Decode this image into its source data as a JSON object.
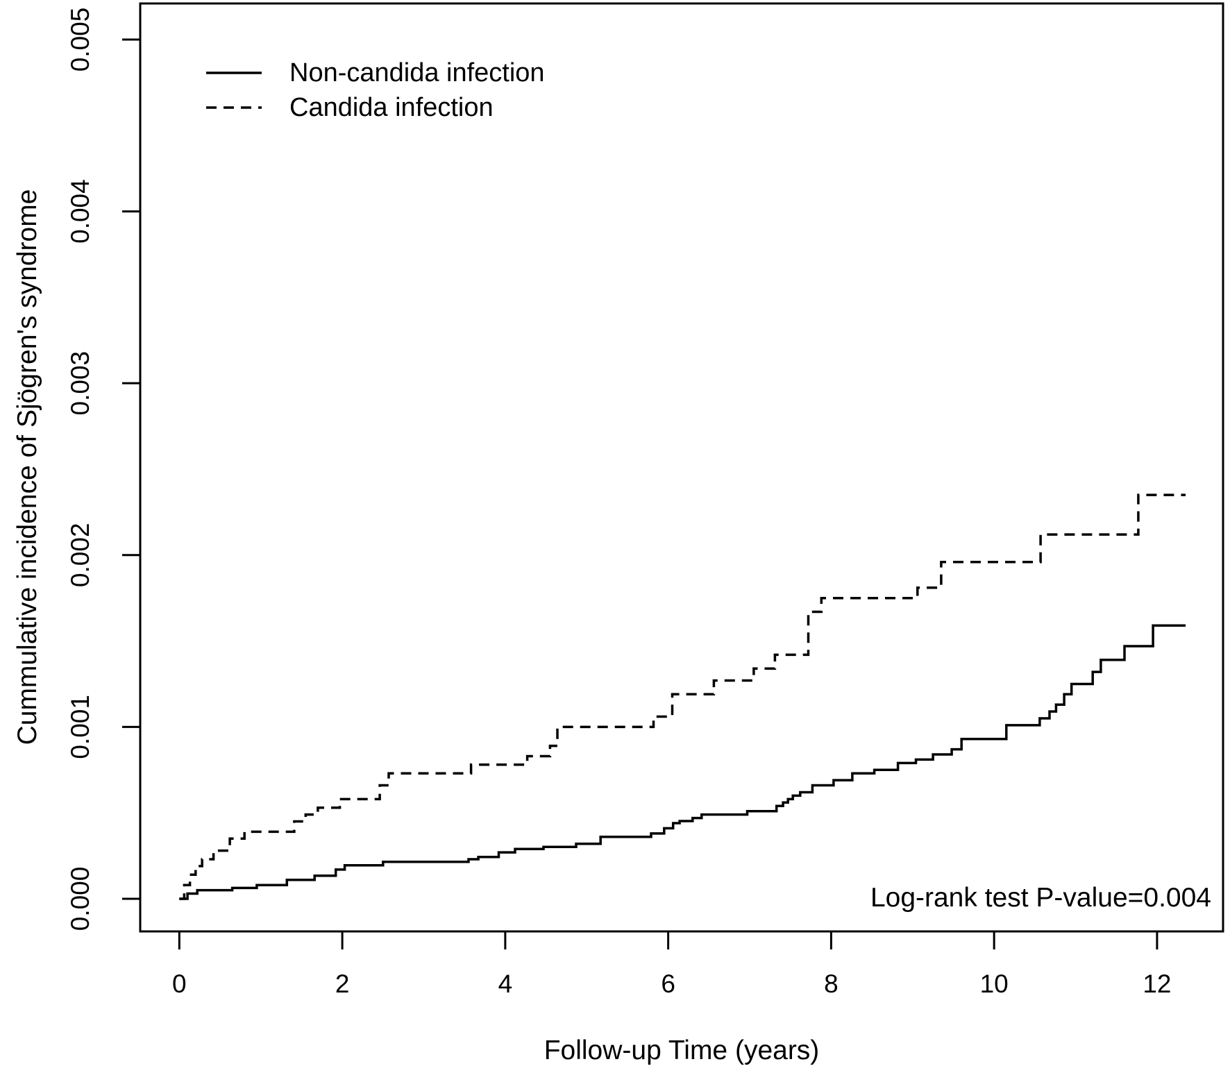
{
  "chart_data": {
    "type": "line",
    "subtype": "kaplan-meier-step",
    "title": "",
    "xlabel": "Follow-up Time (years)",
    "ylabel": "Cummulative incidence of Sjögren's syndrome",
    "annotation": "Log-rank test P-value=0.004",
    "xlim": [
      -0.48,
      12.81
    ],
    "ylim": [
      -0.00019,
      0.00521
    ],
    "grid": false,
    "legend_position": "top-left-inside",
    "x_ticks": [
      {
        "value": 0,
        "label": "0"
      },
      {
        "value": 2,
        "label": "2"
      },
      {
        "value": 4,
        "label": "4"
      },
      {
        "value": 6,
        "label": "6"
      },
      {
        "value": 8,
        "label": "8"
      },
      {
        "value": 10,
        "label": "10"
      },
      {
        "value": 12,
        "label": "12"
      }
    ],
    "y_ticks": [
      {
        "value": 0.0,
        "label": "0.000"
      },
      {
        "value": 0.001,
        "label": "0.001"
      },
      {
        "value": 0.002,
        "label": "0.002"
      },
      {
        "value": 0.003,
        "label": "0.003"
      },
      {
        "value": 0.004,
        "label": "0.004"
      },
      {
        "value": 0.005,
        "label": "0.005"
      }
    ],
    "legend": [
      {
        "label": "Non-candida infection",
        "style": "solid"
      },
      {
        "label": "Candida infection",
        "style": "dashed"
      }
    ],
    "line_color": "#000000",
    "series": [
      {
        "name": "Non-candida infection",
        "style": "solid",
        "end_t": 12.35,
        "points": [
          [
            0,
            0
          ],
          [
            0.1,
            3e-05
          ],
          [
            0.22,
            5e-05
          ],
          [
            0.65,
            6.3e-05
          ],
          [
            0.95,
            8e-05
          ],
          [
            1.32,
            0.00011
          ],
          [
            1.66,
            0.000134
          ],
          [
            1.92,
            0.00017
          ],
          [
            2.03,
            0.000195
          ],
          [
            2.5,
            0.000215
          ],
          [
            3.55,
            0.00023
          ],
          [
            3.67,
            0.000243
          ],
          [
            3.92,
            0.00027
          ],
          [
            4.12,
            0.00029
          ],
          [
            4.47,
            0.000302
          ],
          [
            4.87,
            0.00032
          ],
          [
            5.17,
            0.00036
          ],
          [
            5.79,
            0.00038
          ],
          [
            5.95,
            0.00041
          ],
          [
            6.06,
            0.00044
          ],
          [
            6.14,
            0.000452
          ],
          [
            6.3,
            0.00047
          ],
          [
            6.41,
            0.00049
          ],
          [
            6.97,
            0.00051
          ],
          [
            7.33,
            0.00054
          ],
          [
            7.41,
            0.00056
          ],
          [
            7.47,
            0.00058
          ],
          [
            7.53,
            0.0006
          ],
          [
            7.62,
            0.00062
          ],
          [
            7.77,
            0.00066
          ],
          [
            8.03,
            0.00069
          ],
          [
            8.26,
            0.00073
          ],
          [
            8.53,
            0.00075
          ],
          [
            8.82,
            0.00079
          ],
          [
            9.04,
            0.00081
          ],
          [
            9.25,
            0.00084
          ],
          [
            9.48,
            0.00087
          ],
          [
            9.6,
            0.00093
          ],
          [
            10.15,
            0.00101
          ],
          [
            10.56,
            0.00105
          ],
          [
            10.68,
            0.00109
          ],
          [
            10.76,
            0.00113
          ],
          [
            10.86,
            0.00119
          ],
          [
            10.95,
            0.00125
          ],
          [
            11.21,
            0.00132
          ],
          [
            11.31,
            0.00139
          ],
          [
            11.6,
            0.00147
          ],
          [
            11.95,
            0.00159
          ]
        ]
      },
      {
        "name": "Candida infection",
        "style": "dashed",
        "end_t": 12.35,
        "points": [
          [
            0,
            0
          ],
          [
            0.06,
            8e-05
          ],
          [
            0.13,
            0.00014
          ],
          [
            0.2,
            0.00019
          ],
          [
            0.28,
            0.00023
          ],
          [
            0.42,
            0.00028
          ],
          [
            0.62,
            0.00035
          ],
          [
            0.8,
            0.00039
          ],
          [
            1.41,
            0.00045
          ],
          [
            1.55,
            0.00049
          ],
          [
            1.7,
            0.00053
          ],
          [
            1.97,
            0.00058
          ],
          [
            2.46,
            0.00066
          ],
          [
            2.57,
            0.00073
          ],
          [
            3.58,
            0.00078
          ],
          [
            4.27,
            0.00083
          ],
          [
            4.55,
            0.00089
          ],
          [
            4.64,
            0.001
          ],
          [
            5.82,
            0.00106
          ],
          [
            6.05,
            0.00119
          ],
          [
            6.56,
            0.00127
          ],
          [
            7.05,
            0.00134
          ],
          [
            7.31,
            0.00142
          ],
          [
            7.72,
            0.00167
          ],
          [
            7.88,
            0.00175
          ],
          [
            9.06,
            0.00181
          ],
          [
            9.35,
            0.00196
          ],
          [
            10.57,
            0.00212
          ],
          [
            11.77,
            0.00235
          ]
        ]
      }
    ]
  }
}
